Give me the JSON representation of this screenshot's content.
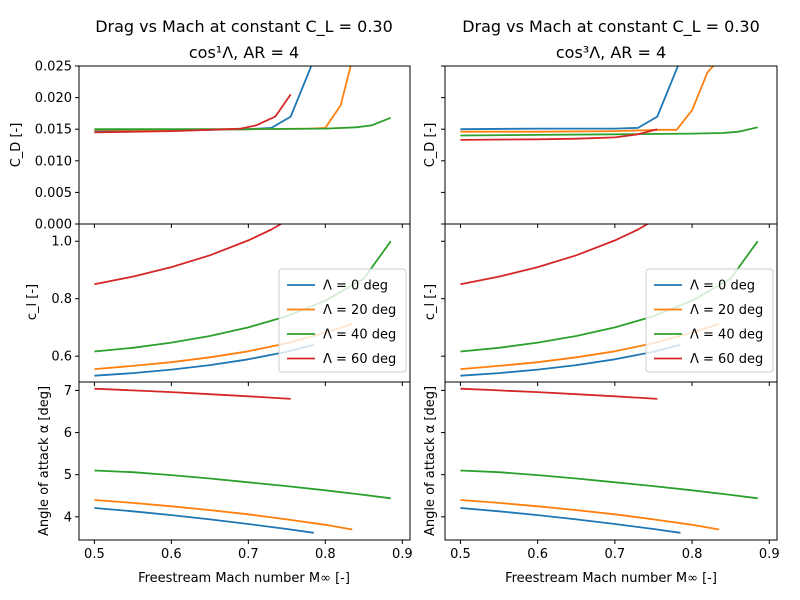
{
  "figure": {
    "background": "#ffffff",
    "series_colors": [
      "#1f77b4",
      "#ff7f0e",
      "#2ca02c",
      "#d62728"
    ]
  },
  "chart_data": [
    {
      "type": "line",
      "title_line1": "Drag vs Mach at constant C_L = 0.30",
      "title_line2": "cos¹Λ, AR = 4",
      "xlabel": "Freestream Mach number M∞ [-]",
      "xlim": [
        0.48,
        0.91
      ],
      "xticks": [
        "0.5",
        "0.6",
        "0.7",
        "0.8",
        "0.9"
      ],
      "legend": {
        "position": "center-right",
        "panel": "cl"
      },
      "panels": [
        {
          "id": "cd",
          "ylabel": "C_D [-]",
          "ylim": [
            0.0,
            0.025
          ],
          "yticks": [
            "0.000",
            "0.005",
            "0.010",
            "0.015",
            "0.020",
            "0.025"
          ],
          "series": [
            {
              "name": "Λ = 0 deg",
              "x": [
                0.5,
                0.55,
                0.6,
                0.65,
                0.7,
                0.73,
                0.755,
                0.785
              ],
              "y": [
                0.0147,
                0.0148,
                0.0148,
                0.0149,
                0.015,
                0.0152,
                0.017,
                0.026
              ]
            },
            {
              "name": "Λ = 20 deg",
              "x": [
                0.5,
                0.6,
                0.7,
                0.78,
                0.8,
                0.82,
                0.835
              ],
              "y": [
                0.0149,
                0.0149,
                0.015,
                0.0151,
                0.0152,
                0.0188,
                0.026
              ]
            },
            {
              "name": "Λ = 40 deg",
              "x": [
                0.5,
                0.6,
                0.7,
                0.8,
                0.84,
                0.86,
                0.885
              ],
              "y": [
                0.015,
                0.015,
                0.015,
                0.0151,
                0.0153,
                0.0156,
                0.0168
              ]
            },
            {
              "name": "Λ = 60 deg",
              "x": [
                0.5,
                0.6,
                0.65,
                0.69,
                0.71,
                0.735,
                0.755
              ],
              "y": [
                0.0145,
                0.0147,
                0.0149,
                0.0151,
                0.0156,
                0.017,
                0.0205
              ]
            }
          ]
        },
        {
          "id": "cl",
          "ylabel": "c_l [-]",
          "ylim": [
            0.51,
            1.06
          ],
          "yticks": [
            "0.6",
            "0.8",
            "1.0"
          ],
          "series": [
            {
              "name": "Λ = 0 deg",
              "x": [
                0.5,
                0.55,
                0.6,
                0.65,
                0.7,
                0.75,
                0.785
              ],
              "y": [
                0.532,
                0.541,
                0.553,
                0.569,
                0.589,
                0.615,
                0.64
              ]
            },
            {
              "name": "Λ = 20 deg",
              "x": [
                0.5,
                0.55,
                0.6,
                0.65,
                0.7,
                0.75,
                0.8,
                0.835
              ],
              "y": [
                0.555,
                0.566,
                0.579,
                0.596,
                0.617,
                0.645,
                0.682,
                0.712
              ]
            },
            {
              "name": "Λ = 40 deg",
              "x": [
                0.5,
                0.55,
                0.6,
                0.65,
                0.7,
                0.75,
                0.8,
                0.85,
                0.885
              ],
              "y": [
                0.616,
                0.629,
                0.647,
                0.67,
                0.7,
                0.739,
                0.793,
                0.87,
                1.0
              ]
            },
            {
              "name": "Λ = 60 deg",
              "x": [
                0.5,
                0.55,
                0.6,
                0.65,
                0.7,
                0.73,
                0.755
              ],
              "y": [
                0.85,
                0.877,
                0.91,
                0.951,
                1.003,
                1.041,
                1.08
              ]
            }
          ]
        },
        {
          "id": "alpha",
          "ylabel": "Angle of attack α [deg]",
          "ylim": [
            3.45,
            7.2
          ],
          "yticks": [
            "4",
            "5",
            "6",
            "7"
          ],
          "series": [
            {
              "name": "Λ = 0 deg",
              "x": [
                0.5,
                0.55,
                0.6,
                0.65,
                0.7,
                0.75,
                0.785
              ],
              "y": [
                4.21,
                4.13,
                4.04,
                3.94,
                3.83,
                3.71,
                3.62
              ]
            },
            {
              "name": "Λ = 20 deg",
              "x": [
                0.5,
                0.55,
                0.6,
                0.65,
                0.7,
                0.75,
                0.8,
                0.835
              ],
              "y": [
                4.4,
                4.33,
                4.25,
                4.16,
                4.06,
                3.94,
                3.81,
                3.7
              ]
            },
            {
              "name": "Λ = 40 deg",
              "x": [
                0.5,
                0.55,
                0.6,
                0.65,
                0.7,
                0.75,
                0.8,
                0.85,
                0.885
              ],
              "y": [
                5.1,
                5.06,
                4.99,
                4.91,
                4.82,
                4.73,
                4.63,
                4.52,
                4.44
              ]
            },
            {
              "name": "Λ = 60 deg",
              "x": [
                0.5,
                0.55,
                0.6,
                0.65,
                0.7,
                0.755
              ],
              "y": [
                7.04,
                7.0,
                6.96,
                6.91,
                6.86,
                6.8
              ]
            }
          ]
        }
      ]
    },
    {
      "type": "line",
      "title_line1": "Drag vs Mach at constant C_L = 0.30",
      "title_line2": "cos³Λ, AR = 4",
      "xlabel": "Freestream Mach number M∞ [-]",
      "xlim": [
        0.48,
        0.91
      ],
      "xticks": [
        "0.5",
        "0.6",
        "0.7",
        "0.8",
        "0.9"
      ],
      "legend": {
        "position": "center-right",
        "panel": "cl"
      },
      "panels": [
        {
          "id": "cd",
          "ylabel": "C_D [-]",
          "ylim": [
            0.0,
            0.025
          ],
          "yticks": [],
          "series": [
            {
              "name": "Λ = 0 deg",
              "x": [
                0.5,
                0.6,
                0.7,
                0.73,
                0.755,
                0.785
              ],
              "y": [
                0.015,
                0.0151,
                0.0151,
                0.0152,
                0.017,
                0.026
              ]
            },
            {
              "name": "Λ = 20 deg",
              "x": [
                0.5,
                0.6,
                0.7,
                0.76,
                0.78,
                0.8,
                0.82,
                0.835
              ],
              "y": [
                0.0146,
                0.0146,
                0.0147,
                0.0149,
                0.0149,
                0.018,
                0.024,
                0.026
              ]
            },
            {
              "name": "Λ = 40 deg",
              "x": [
                0.5,
                0.6,
                0.7,
                0.8,
                0.84,
                0.86,
                0.885
              ],
              "y": [
                0.014,
                0.0141,
                0.0142,
                0.0143,
                0.0144,
                0.0146,
                0.0153
              ]
            },
            {
              "name": "Λ = 60 deg",
              "x": [
                0.5,
                0.6,
                0.65,
                0.7,
                0.73,
                0.755
              ],
              "y": [
                0.0133,
                0.0134,
                0.0135,
                0.0137,
                0.0142,
                0.015
              ]
            }
          ]
        },
        {
          "id": "cl",
          "ylabel": "c_l [-]",
          "ylim": [
            0.51,
            1.06
          ],
          "yticks": [],
          "series": [
            {
              "name": "Λ = 0 deg",
              "x": [
                0.5,
                0.55,
                0.6,
                0.65,
                0.7,
                0.75,
                0.785
              ],
              "y": [
                0.532,
                0.541,
                0.553,
                0.569,
                0.589,
                0.615,
                0.64
              ]
            },
            {
              "name": "Λ = 20 deg",
              "x": [
                0.5,
                0.55,
                0.6,
                0.65,
                0.7,
                0.75,
                0.8,
                0.835
              ],
              "y": [
                0.555,
                0.566,
                0.579,
                0.596,
                0.617,
                0.645,
                0.682,
                0.712
              ]
            },
            {
              "name": "Λ = 40 deg",
              "x": [
                0.5,
                0.55,
                0.6,
                0.65,
                0.7,
                0.75,
                0.8,
                0.85,
                0.885
              ],
              "y": [
                0.616,
                0.629,
                0.647,
                0.67,
                0.7,
                0.739,
                0.793,
                0.87,
                1.0
              ]
            },
            {
              "name": "Λ = 60 deg",
              "x": [
                0.5,
                0.55,
                0.6,
                0.65,
                0.7,
                0.73,
                0.755
              ],
              "y": [
                0.85,
                0.877,
                0.91,
                0.951,
                1.003,
                1.041,
                1.08
              ]
            }
          ]
        },
        {
          "id": "alpha",
          "ylabel": "Angle of attack α [deg]",
          "ylim": [
            3.45,
            7.2
          ],
          "yticks": [],
          "series": [
            {
              "name": "Λ = 0 deg",
              "x": [
                0.5,
                0.55,
                0.6,
                0.65,
                0.7,
                0.75,
                0.785
              ],
              "y": [
                4.21,
                4.13,
                4.04,
                3.94,
                3.83,
                3.71,
                3.62
              ]
            },
            {
              "name": "Λ = 20 deg",
              "x": [
                0.5,
                0.55,
                0.6,
                0.65,
                0.7,
                0.75,
                0.8,
                0.835
              ],
              "y": [
                4.4,
                4.33,
                4.25,
                4.16,
                4.06,
                3.94,
                3.81,
                3.7
              ]
            },
            {
              "name": "Λ = 40 deg",
              "x": [
                0.5,
                0.55,
                0.6,
                0.65,
                0.7,
                0.75,
                0.8,
                0.85,
                0.885
              ],
              "y": [
                5.1,
                5.06,
                4.99,
                4.91,
                4.82,
                4.73,
                4.63,
                4.52,
                4.44
              ]
            },
            {
              "name": "Λ = 60 deg",
              "x": [
                0.5,
                0.55,
                0.6,
                0.65,
                0.7,
                0.755
              ],
              "y": [
                7.04,
                7.0,
                6.96,
                6.91,
                6.86,
                6.8
              ]
            }
          ]
        }
      ]
    }
  ]
}
